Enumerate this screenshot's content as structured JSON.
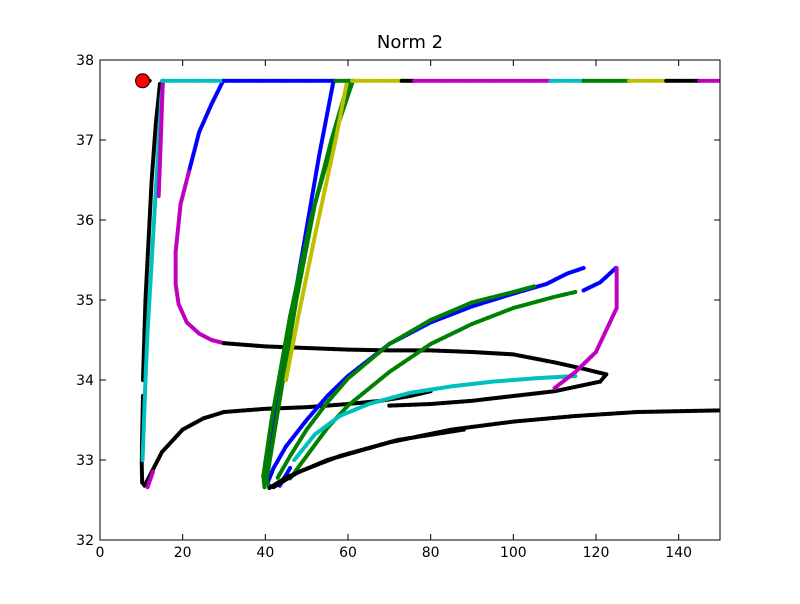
{
  "chart_data": {
    "type": "scatter",
    "title": "Norm 2",
    "xlabel": "",
    "ylabel": "",
    "xlim": [
      0,
      150
    ],
    "ylim": [
      32,
      38
    ],
    "xticks": [
      0,
      20,
      40,
      60,
      80,
      100,
      120,
      140
    ],
    "yticks": [
      32,
      33,
      34,
      35,
      36,
      37,
      38
    ],
    "grid": false,
    "legend": "none",
    "colors": {
      "blue": "#0000ff",
      "green": "#008000",
      "cyan": "#00bfbf",
      "magenta": "#bf00bf",
      "yellow": "#bfbf00",
      "black": "#000000",
      "start_marker": "#ff0000"
    },
    "start_point": {
      "x": 10.3,
      "y": 37.74
    },
    "series": [
      {
        "color": "black",
        "points": [
          [
            10.4,
            33.8
          ],
          [
            10.2,
            33.3
          ],
          [
            10.1,
            32.95
          ],
          [
            10.2,
            32.72
          ],
          [
            10.8,
            32.68
          ],
          [
            12.5,
            32.85
          ],
          [
            15,
            33.1
          ],
          [
            20,
            33.38
          ],
          [
            25,
            33.52
          ],
          [
            30,
            33.6
          ],
          [
            40,
            33.64
          ],
          [
            50,
            33.66
          ],
          [
            60,
            33.7
          ],
          [
            68,
            33.74
          ],
          [
            75,
            33.8
          ],
          [
            80,
            33.86
          ]
        ]
      },
      {
        "color": "black",
        "points": [
          [
            10.4,
            34.0
          ],
          [
            11,
            35.0
          ],
          [
            11.5,
            35.5
          ],
          [
            12.5,
            36.5
          ],
          [
            13.5,
            37.2
          ],
          [
            14.5,
            37.7
          ]
        ]
      },
      {
        "color": "cyan",
        "points": [
          [
            10.3,
            33.0
          ],
          [
            11,
            34.0
          ],
          [
            11.5,
            34.6
          ],
          [
            12.3,
            35.3
          ],
          [
            13.2,
            36.1
          ],
          [
            14,
            36.8
          ],
          [
            14.8,
            37.5
          ],
          [
            15.3,
            37.74
          ]
        ]
      },
      {
        "color": "magenta",
        "points": [
          [
            11.5,
            32.66
          ],
          [
            12.8,
            32.85
          ]
        ]
      },
      {
        "color": "magenta",
        "points": [
          [
            15.2,
            37.74
          ],
          [
            14.7,
            37.0
          ],
          [
            14.2,
            36.3
          ]
        ]
      },
      {
        "color": "blue",
        "points": [
          [
            29.8,
            37.74
          ],
          [
            27,
            37.45
          ],
          [
            24,
            37.1
          ],
          [
            21.5,
            36.6
          ]
        ]
      },
      {
        "color": "magenta",
        "points": [
          [
            21.5,
            36.6
          ],
          [
            19.5,
            36.2
          ],
          [
            18.3,
            35.6
          ],
          [
            18.3,
            35.2
          ],
          [
            19,
            34.95
          ],
          [
            21,
            34.72
          ],
          [
            24,
            34.58
          ],
          [
            27,
            34.5
          ],
          [
            30,
            34.46
          ]
        ]
      },
      {
        "color": "black",
        "points": [
          [
            30,
            34.46
          ],
          [
            40,
            34.42
          ],
          [
            50,
            34.4
          ],
          [
            60,
            34.38
          ],
          [
            70,
            34.37
          ],
          [
            80,
            34.37
          ],
          [
            90,
            34.35
          ],
          [
            100,
            34.32
          ],
          [
            110,
            34.22
          ],
          [
            117,
            34.14
          ],
          [
            122.5,
            34.07
          ],
          [
            121,
            33.98
          ],
          [
            110,
            33.86
          ],
          [
            100,
            33.8
          ],
          [
            90,
            33.74
          ],
          [
            80,
            33.7
          ],
          [
            70,
            33.68
          ]
        ]
      },
      {
        "color": "blue",
        "points": [
          [
            56.5,
            37.74
          ],
          [
            53,
            36.8
          ],
          [
            49,
            35.6
          ],
          [
            45,
            34.4
          ],
          [
            41.5,
            33.2
          ],
          [
            40,
            32.75
          ],
          [
            41,
            32.68
          ]
        ]
      },
      {
        "color": "blue",
        "points": [
          [
            40.6,
            32.72
          ],
          [
            42,
            32.9
          ],
          [
            45,
            33.17
          ],
          [
            50,
            33.5
          ],
          [
            55,
            33.8
          ],
          [
            60,
            34.05
          ],
          [
            70,
            34.45
          ],
          [
            80,
            34.72
          ],
          [
            90,
            34.92
          ],
          [
            100,
            35.08
          ],
          [
            108,
            35.2
          ],
          [
            113,
            35.33
          ],
          [
            117,
            35.4
          ]
        ]
      },
      {
        "color": "blue",
        "points": [
          [
            43.5,
            32.68
          ],
          [
            46,
            32.9
          ]
        ]
      },
      {
        "color": "blue",
        "points": [
          [
            124.8,
            35.4
          ],
          [
            121,
            35.22
          ],
          [
            117,
            35.12
          ]
        ]
      },
      {
        "color": "green",
        "points": [
          [
            61.2,
            37.74
          ],
          [
            57,
            37.1
          ],
          [
            52,
            36.2
          ],
          [
            47.5,
            35.0
          ],
          [
            43,
            33.6
          ],
          [
            40.3,
            32.75
          ],
          [
            40.8,
            32.68
          ]
        ]
      },
      {
        "color": "green",
        "points": [
          [
            60.2,
            37.74
          ],
          [
            56,
            37.0
          ],
          [
            51,
            36.0
          ],
          [
            46,
            34.8
          ],
          [
            41.5,
            33.5
          ],
          [
            39.5,
            32.8
          ],
          [
            39.8,
            32.66
          ]
        ]
      },
      {
        "color": "green",
        "points": [
          [
            43,
            32.78
          ],
          [
            46,
            33.05
          ],
          [
            50,
            33.38
          ],
          [
            55,
            33.72
          ],
          [
            60,
            34.02
          ],
          [
            70,
            34.45
          ],
          [
            80,
            34.75
          ],
          [
            90,
            34.97
          ],
          [
            100,
            35.1
          ],
          [
            105,
            35.17
          ]
        ]
      },
      {
        "color": "green",
        "points": [
          [
            46,
            32.77
          ],
          [
            50,
            33.05
          ],
          [
            55,
            33.4
          ],
          [
            60,
            33.68
          ],
          [
            70,
            34.1
          ],
          [
            80,
            34.45
          ],
          [
            90,
            34.7
          ],
          [
            100,
            34.9
          ],
          [
            110,
            35.04
          ],
          [
            115,
            35.1
          ]
        ]
      },
      {
        "color": "yellow",
        "points": [
          [
            59.8,
            37.74
          ],
          [
            57,
            37.0
          ],
          [
            52,
            35.8
          ],
          [
            48,
            34.8
          ],
          [
            45,
            34.0
          ]
        ]
      },
      {
        "color": "cyan",
        "points": [
          [
            47,
            33.0
          ],
          [
            52,
            33.32
          ],
          [
            58,
            33.55
          ],
          [
            65,
            33.7
          ],
          [
            75,
            33.84
          ],
          [
            85,
            33.92
          ],
          [
            95,
            33.98
          ],
          [
            105,
            34.02
          ],
          [
            115,
            34.05
          ]
        ]
      },
      {
        "color": "magenta",
        "points": [
          [
            110,
            33.9
          ],
          [
            115,
            34.1
          ],
          [
            120,
            34.35
          ],
          [
            125,
            34.9
          ],
          [
            125,
            35.4
          ]
        ]
      },
      {
        "color": "black",
        "points": [
          [
            41,
            32.65
          ],
          [
            45,
            32.78
          ],
          [
            55,
            33.0
          ],
          [
            70,
            33.22
          ],
          [
            85,
            33.38
          ],
          [
            100,
            33.48
          ],
          [
            115,
            33.55
          ],
          [
            130,
            33.6
          ],
          [
            150,
            33.62
          ]
        ]
      },
      {
        "color": "black",
        "points": [
          [
            42,
            32.66
          ],
          [
            48,
            32.85
          ],
          [
            58,
            33.05
          ],
          [
            72,
            33.25
          ],
          [
            88,
            33.38
          ]
        ]
      },
      {
        "color": "black",
        "points": [
          [
            10,
            37.74
          ],
          [
            12,
            37.74
          ]
        ]
      },
      {
        "color": "cyan",
        "points": [
          [
            15,
            37.74
          ],
          [
            30,
            37.74
          ]
        ]
      },
      {
        "color": "blue",
        "points": [
          [
            30,
            37.74
          ],
          [
            57,
            37.74
          ]
        ]
      },
      {
        "color": "green",
        "points": [
          [
            57,
            37.74
          ],
          [
            61,
            37.74
          ]
        ]
      },
      {
        "color": "yellow",
        "points": [
          [
            61,
            37.74
          ],
          [
            73,
            37.74
          ]
        ]
      },
      {
        "color": "black",
        "points": [
          [
            73,
            37.74
          ],
          [
            76,
            37.74
          ]
        ]
      },
      {
        "color": "magenta",
        "points": [
          [
            76,
            37.74
          ],
          [
            109,
            37.74
          ]
        ]
      },
      {
        "color": "cyan",
        "points": [
          [
            109,
            37.74
          ],
          [
            117,
            37.74
          ]
        ]
      },
      {
        "color": "green",
        "points": [
          [
            117,
            37.74
          ],
          [
            128,
            37.74
          ]
        ]
      },
      {
        "color": "yellow",
        "points": [
          [
            128,
            37.74
          ],
          [
            137,
            37.74
          ]
        ]
      },
      {
        "color": "black",
        "points": [
          [
            137,
            37.74
          ],
          [
            145,
            37.74
          ]
        ]
      },
      {
        "color": "magenta",
        "points": [
          [
            145,
            37.74
          ],
          [
            150,
            37.74
          ]
        ]
      }
    ]
  }
}
